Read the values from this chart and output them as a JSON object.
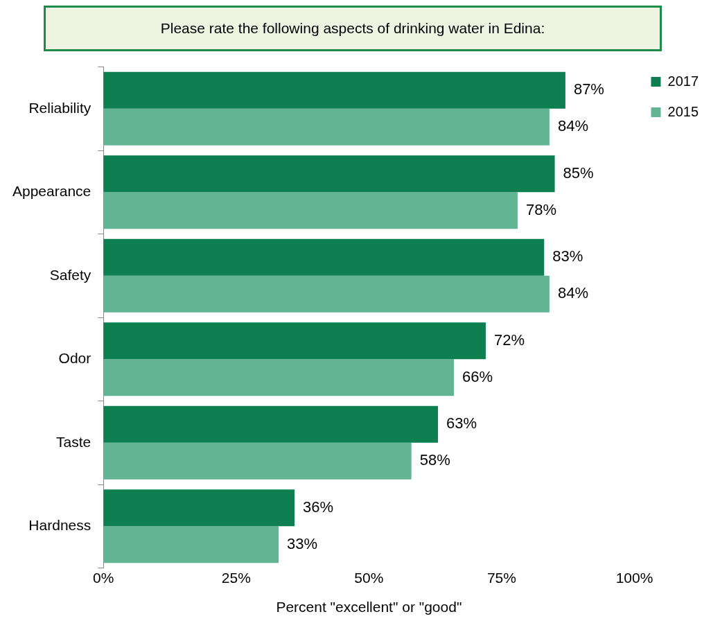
{
  "chart_data": {
    "type": "bar",
    "orientation": "horizontal",
    "title": "Please rate the following aspects of drinking water in Edina:",
    "xlabel": "Percent \"excellent\" or \"good\"",
    "categories": [
      "Reliability",
      "Appearance",
      "Safety",
      "Odor",
      "Taste",
      "Hardness"
    ],
    "series": [
      {
        "name": "2017",
        "color": "#0e7f50",
        "values": [
          87,
          85,
          83,
          72,
          63,
          36
        ],
        "value_labels": [
          "87%",
          "85%",
          "83%",
          "72%",
          "63%",
          "36%"
        ]
      },
      {
        "name": "2015",
        "color": "#62b592",
        "values": [
          84,
          78,
          84,
          66,
          58,
          33
        ],
        "value_labels": [
          "84%",
          "78%",
          "84%",
          "66%",
          "58%",
          "33%"
        ]
      }
    ],
    "xlim": [
      0,
      100
    ],
    "xticks": [
      {
        "value": 0,
        "label": "0%"
      },
      {
        "value": 25,
        "label": "25%"
      },
      {
        "value": 50,
        "label": "50%"
      },
      {
        "value": 75,
        "label": "75%"
      },
      {
        "value": 100,
        "label": "100%"
      }
    ],
    "grid": false,
    "legend": "top right"
  }
}
